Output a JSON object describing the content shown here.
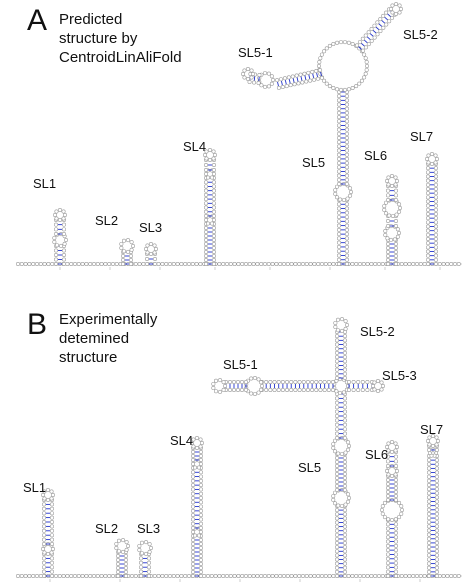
{
  "panel_a": {
    "letter": "A",
    "caption": "Predicted\nstructure by\nCentroidLinAliFold",
    "labels": {
      "SL1": "SL1",
      "SL2": "SL2",
      "SL3": "SL3",
      "SL4": "SL4",
      "SL5": "SL5",
      "SL5_1": "SL5-1",
      "SL5_2": "SL5-2",
      "SL6": "SL6",
      "SL7": "SL7"
    }
  },
  "panel_b": {
    "letter": "B",
    "caption": "Experimentally\ndetemined\nstructure",
    "labels": {
      "SL1": "SL1",
      "SL2": "SL2",
      "SL3": "SL3",
      "SL4": "SL4",
      "SL5": "SL5",
      "SL5_1": "SL5-1",
      "SL5_2": "SL5-2",
      "SL5_3": "SL5-3",
      "SL6": "SL6",
      "SL7": "SL7"
    }
  },
  "colors": {
    "nucleotide": "#9a9a9a",
    "base_pair": "#2233cc",
    "backbone": "#9a9a9a",
    "text": "#111111"
  }
}
